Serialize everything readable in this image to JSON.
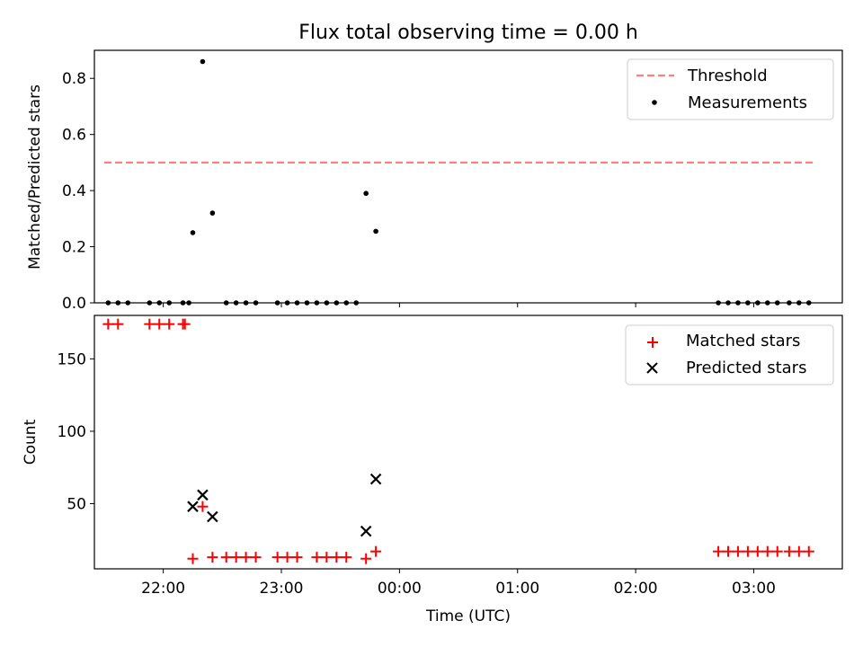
{
  "chart_data": [
    {
      "type": "scatter",
      "title": "Flux total observing time = 0.00 h",
      "ylabel": "Matched/Predicted stars",
      "xlabel": "",
      "xlim": [
        "21:25",
        "03:45"
      ],
      "ylim": [
        0,
        0.9
      ],
      "yticks": [
        "0.0",
        "0.2",
        "0.4",
        "0.6",
        "0.8"
      ],
      "ytick_values": [
        0.0,
        0.2,
        0.4,
        0.6,
        0.8
      ],
      "grid": false,
      "legend_position": "top-right",
      "threshold": {
        "name": "Threshold",
        "y": 0.5,
        "x_range": [
          "21:30",
          "03:30"
        ],
        "color": "#ff7f7f"
      },
      "series": [
        {
          "name": "Measurements",
          "color": "#000000",
          "points": [
            [
              "21:32",
              0
            ],
            [
              "21:37",
              0
            ],
            [
              "21:42",
              0
            ],
            [
              "21:53",
              0
            ],
            [
              "21:58",
              0
            ],
            [
              "22:03",
              0
            ],
            [
              "22:10",
              0
            ],
            [
              "22:13",
              0
            ],
            [
              "22:15",
              0.25
            ],
            [
              "22:20",
              0.86
            ],
            [
              "22:25",
              0.32
            ],
            [
              "22:32",
              0
            ],
            [
              "22:37",
              0
            ],
            [
              "22:42",
              0
            ],
            [
              "22:47",
              0
            ],
            [
              "22:58",
              0
            ],
            [
              "23:03",
              0
            ],
            [
              "23:08",
              0
            ],
            [
              "23:13",
              0
            ],
            [
              "23:18",
              0
            ],
            [
              "23:23",
              0
            ],
            [
              "23:28",
              0
            ],
            [
              "23:33",
              0
            ],
            [
              "23:38",
              0
            ],
            [
              "23:43",
              0.39
            ],
            [
              "23:48",
              0.255
            ],
            [
              "02:42",
              0
            ],
            [
              "02:47",
              0
            ],
            [
              "02:52",
              0
            ],
            [
              "02:57",
              0
            ],
            [
              "03:02",
              0
            ],
            [
              "03:07",
              0
            ],
            [
              "03:12",
              0
            ],
            [
              "03:18",
              0
            ],
            [
              "03:23",
              0
            ],
            [
              "03:28",
              0
            ]
          ]
        }
      ]
    },
    {
      "type": "scatter",
      "title": "",
      "xlabel": "Time (UTC)",
      "ylabel": "Count",
      "xlim": [
        "21:25",
        "03:45"
      ],
      "ylim": [
        5,
        180
      ],
      "yticks": [
        "50",
        "100",
        "150"
      ],
      "ytick_values": [
        50,
        100,
        150
      ],
      "xticks": [
        "22:00",
        "23:00",
        "00:00",
        "01:00",
        "02:00",
        "03:00"
      ],
      "xtick_values": [
        "22:00",
        "23:00",
        "00:00",
        "01:00",
        "02:00",
        "03:00"
      ],
      "grid": false,
      "legend_position": "top-right",
      "series": [
        {
          "name": "Matched stars",
          "marker": "+",
          "color": "#ff0000",
          "points": [
            [
              "21:32",
              174
            ],
            [
              "21:37",
              174
            ],
            [
              "21:53",
              174
            ],
            [
              "21:58",
              174
            ],
            [
              "22:03",
              174
            ],
            [
              "22:10",
              174
            ],
            [
              "22:11",
              174
            ],
            [
              "22:15",
              12
            ],
            [
              "22:20",
              48
            ],
            [
              "22:25",
              13
            ],
            [
              "22:32",
              13
            ],
            [
              "22:37",
              13
            ],
            [
              "22:42",
              13
            ],
            [
              "22:47",
              13
            ],
            [
              "22:58",
              13
            ],
            [
              "23:03",
              13
            ],
            [
              "23:08",
              13
            ],
            [
              "23:18",
              13
            ],
            [
              "23:23",
              13
            ],
            [
              "23:28",
              13
            ],
            [
              "23:33",
              13
            ],
            [
              "23:43",
              12
            ],
            [
              "23:48",
              17
            ],
            [
              "02:42",
              17
            ],
            [
              "02:47",
              17
            ],
            [
              "02:52",
              17
            ],
            [
              "02:57",
              17
            ],
            [
              "03:02",
              17
            ],
            [
              "03:07",
              17
            ],
            [
              "03:12",
              17
            ],
            [
              "03:18",
              17
            ],
            [
              "03:23",
              17
            ],
            [
              "03:28",
              17
            ]
          ]
        },
        {
          "name": "Predicted stars",
          "marker": "x",
          "color": "#000000",
          "points": [
            [
              "22:15",
              48
            ],
            [
              "22:20",
              56
            ],
            [
              "22:25",
              41
            ],
            [
              "23:43",
              31
            ],
            [
              "23:48",
              67
            ]
          ]
        }
      ]
    }
  ]
}
